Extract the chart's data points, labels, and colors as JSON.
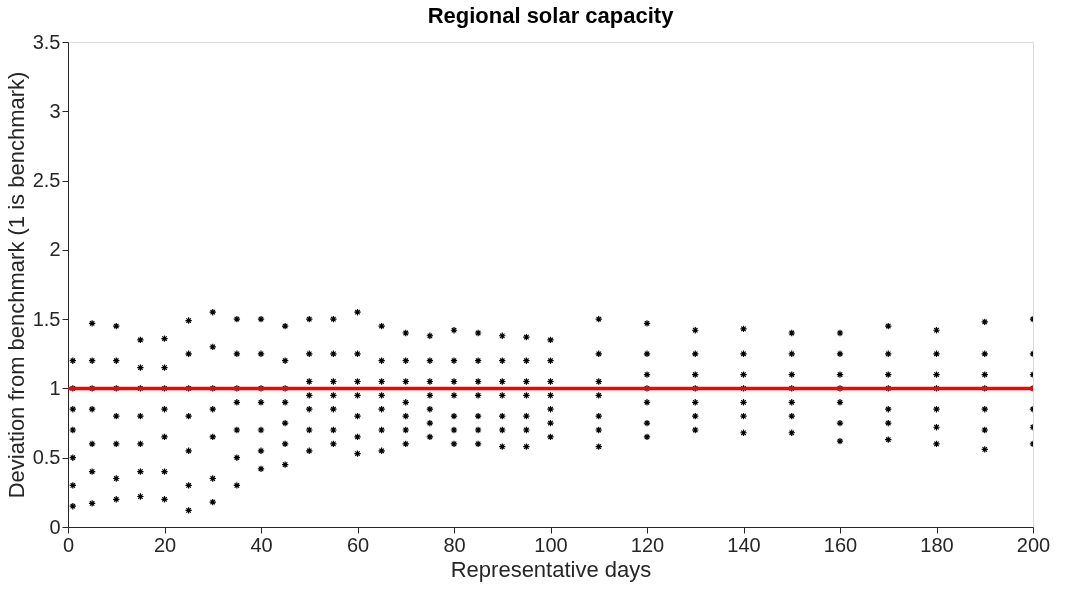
{
  "chart_data": {
    "type": "scatter",
    "title": "Regional solar capacity",
    "xlabel": "Representative days",
    "ylabel": "Deviation from benchmark (1 is benchmark)",
    "xlim": [
      0,
      200
    ],
    "xticks": [
      0,
      20,
      40,
      60,
      80,
      100,
      120,
      140,
      160,
      180,
      200
    ],
    "ylim": [
      0,
      3.5
    ],
    "yticks": [
      0,
      0.5,
      1,
      1.5,
      2,
      2.5,
      3,
      3.5
    ],
    "grid": false,
    "marker": "cross",
    "series": [
      {
        "color": "#000000",
        "x": [
          1,
          1,
          1,
          1,
          1,
          1,
          1,
          5,
          5,
          5,
          5,
          5,
          5,
          5,
          10,
          10,
          10,
          10,
          10,
          10,
          10,
          15,
          15,
          15,
          15,
          15,
          15,
          15,
          20,
          20,
          20,
          20,
          20,
          20,
          20,
          25,
          25,
          25,
          25,
          25,
          25,
          25,
          30,
          30,
          30,
          30,
          30,
          30,
          30,
          35,
          35,
          35,
          35,
          35,
          35,
          35,
          40,
          40,
          40,
          40,
          40,
          40,
          40,
          45,
          45,
          45,
          45,
          45,
          45,
          45,
          50,
          50,
          50,
          50,
          50,
          50,
          50,
          55,
          55,
          55,
          55,
          55,
          55,
          55,
          60,
          60,
          60,
          60,
          60,
          60,
          60,
          65,
          65,
          65,
          65,
          65,
          65,
          65,
          70,
          70,
          70,
          70,
          70,
          70,
          70,
          75,
          75,
          75,
          75,
          75,
          75,
          75,
          80,
          80,
          80,
          80,
          80,
          80,
          80,
          85,
          85,
          85,
          85,
          85,
          85,
          85,
          90,
          90,
          90,
          90,
          90,
          90,
          90,
          95,
          95,
          95,
          95,
          95,
          95,
          95,
          100,
          100,
          100,
          100,
          100,
          100,
          100,
          110,
          110,
          110,
          110,
          110,
          110,
          110,
          120,
          120,
          120,
          120,
          120,
          120,
          120,
          130,
          130,
          130,
          130,
          130,
          130,
          130,
          140,
          140,
          140,
          140,
          140,
          140,
          140,
          150,
          150,
          150,
          150,
          150,
          150,
          150,
          160,
          160,
          160,
          160,
          160,
          160,
          160,
          170,
          170,
          170,
          170,
          170,
          170,
          170,
          180,
          180,
          180,
          180,
          180,
          180,
          180,
          190,
          190,
          190,
          190,
          190,
          190,
          190,
          200,
          200,
          200,
          200,
          200,
          200,
          200
        ],
        "values": [
          0.15,
          0.3,
          0.5,
          0.7,
          0.85,
          1.0,
          1.2,
          0.17,
          0.4,
          0.6,
          0.85,
          1.0,
          1.2,
          1.47,
          0.2,
          0.35,
          0.6,
          0.8,
          1.0,
          1.2,
          1.45,
          0.22,
          0.4,
          0.6,
          0.8,
          1.0,
          1.15,
          1.35,
          0.2,
          0.4,
          0.65,
          0.85,
          1.0,
          1.15,
          1.36,
          0.12,
          0.3,
          0.55,
          0.8,
          1.0,
          1.25,
          1.49,
          0.18,
          0.35,
          0.65,
          0.85,
          1.0,
          1.3,
          1.55,
          0.3,
          0.5,
          0.7,
          0.9,
          1.0,
          1.25,
          1.5,
          0.42,
          0.55,
          0.7,
          0.9,
          1.0,
          1.25,
          1.5,
          0.45,
          0.6,
          0.75,
          0.9,
          1.0,
          1.2,
          1.45,
          0.55,
          0.7,
          0.85,
          0.95,
          1.05,
          1.25,
          1.5,
          0.6,
          0.7,
          0.85,
          0.95,
          1.05,
          1.25,
          1.5,
          0.53,
          0.65,
          0.8,
          0.95,
          1.05,
          1.25,
          1.55,
          0.55,
          0.7,
          0.85,
          0.95,
          1.05,
          1.2,
          1.45,
          0.6,
          0.7,
          0.8,
          0.9,
          1.05,
          1.2,
          1.4,
          0.65,
          0.75,
          0.85,
          0.95,
          1.05,
          1.2,
          1.38,
          0.6,
          0.7,
          0.8,
          0.95,
          1.05,
          1.2,
          1.42,
          0.6,
          0.7,
          0.8,
          0.95,
          1.05,
          1.2,
          1.4,
          0.58,
          0.7,
          0.8,
          0.95,
          1.05,
          1.2,
          1.38,
          0.58,
          0.7,
          0.8,
          0.95,
          1.05,
          1.2,
          1.37,
          0.65,
          0.75,
          0.85,
          0.95,
          1.05,
          1.2,
          1.35,
          0.58,
          0.7,
          0.8,
          0.95,
          1.05,
          1.25,
          1.5,
          0.65,
          0.75,
          0.9,
          1.0,
          1.1,
          1.25,
          1.47,
          0.7,
          0.8,
          0.9,
          1.0,
          1.1,
          1.25,
          1.42,
          0.68,
          0.8,
          0.9,
          1.0,
          1.1,
          1.25,
          1.43,
          0.68,
          0.8,
          0.9,
          1.0,
          1.1,
          1.25,
          1.4,
          0.62,
          0.75,
          0.9,
          1.0,
          1.1,
          1.25,
          1.4,
          0.63,
          0.75,
          0.85,
          1.0,
          1.1,
          1.25,
          1.45,
          0.6,
          0.72,
          0.85,
          1.0,
          1.1,
          1.25,
          1.42,
          0.56,
          0.7,
          0.85,
          1.0,
          1.1,
          1.25,
          1.48,
          0.6,
          0.72,
          0.85,
          1.0,
          1.1,
          1.25,
          1.5
        ]
      }
    ],
    "ref_lines": [
      {
        "axis": "y",
        "value": 1,
        "color": "#ff0000",
        "line_style": "solid"
      }
    ]
  }
}
